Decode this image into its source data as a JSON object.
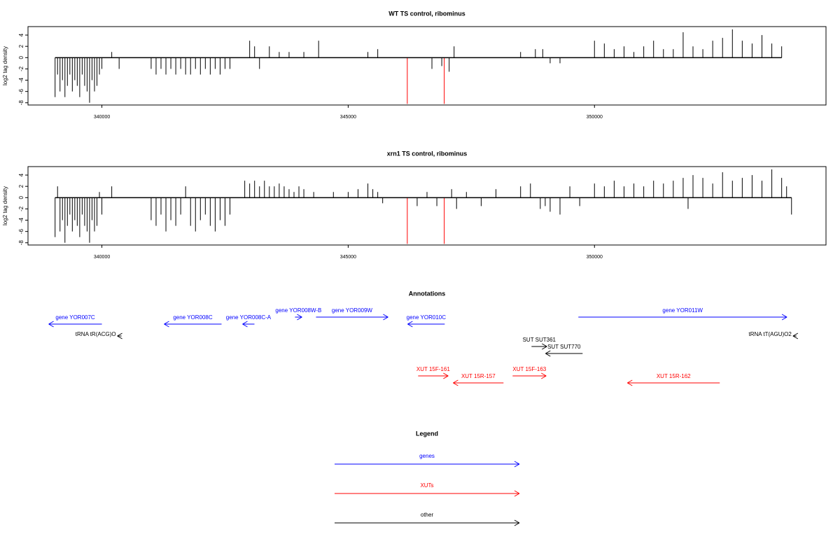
{
  "chart_data": [
    {
      "type": "bar",
      "title": "WT TS control, ribominus",
      "ylabel": "log2 tag density",
      "xlim": [
        338500,
        354700
      ],
      "ylim": [
        -8.4,
        5.5
      ],
      "xticks": [
        340000,
        345000,
        350000
      ],
      "yticks": [
        -8,
        -6,
        -4,
        -2,
        0,
        2,
        4
      ],
      "color": "#000000",
      "x": [
        339050,
        339100,
        339150,
        339200,
        339250,
        339300,
        339350,
        339400,
        339450,
        339500,
        339550,
        339600,
        339650,
        339700,
        339750,
        339800,
        339850,
        339900,
        339950,
        340000,
        340200,
        340350,
        341000,
        341100,
        341200,
        341300,
        341400,
        341500,
        341600,
        341700,
        341800,
        341900,
        342000,
        342100,
        342200,
        342300,
        342400,
        342500,
        342600,
        343000,
        343100,
        343200,
        343400,
        343600,
        343800,
        344100,
        344400,
        345400,
        345600,
        346700,
        346900,
        347050,
        347150,
        348500,
        348800,
        348950,
        349100,
        349300,
        350000,
        350200,
        350400,
        350600,
        350800,
        351000,
        351200,
        351400,
        351600,
        351800,
        352000,
        352200,
        352400,
        352600,
        352800,
        353000,
        353200,
        353400,
        353600,
        353800
      ],
      "values": [
        -7,
        -3,
        -6,
        -4,
        -7,
        -5,
        -3,
        -6,
        -4,
        -5,
        -7,
        -3,
        -5,
        -6,
        -8,
        -4,
        -6,
        -5,
        -3,
        -2,
        1,
        -2,
        -2,
        -3,
        -2,
        -3,
        -2,
        -3,
        -2,
        -3,
        -3,
        -2,
        -3,
        -2,
        -3,
        -2,
        -3,
        -2,
        -2,
        3,
        2,
        -2,
        2,
        1,
        1,
        1,
        3,
        1,
        1.5,
        -2,
        -1.5,
        -2.5,
        2,
        1,
        1.5,
        1.5,
        -1,
        -1,
        3,
        2.5,
        1.5,
        2,
        1,
        2,
        3,
        1.5,
        1.5,
        4.5,
        2,
        1.5,
        3,
        3.5,
        5,
        3,
        2.5,
        4,
        2.5,
        2
      ],
      "highlight": {
        "color": "#ff0000",
        "x": [
          346200,
          346950
        ],
        "values": [
          -8.2,
          -8.2
        ]
      }
    },
    {
      "type": "bar",
      "title": "xrn1 TS control, ribominus",
      "ylabel": "log2 tag density",
      "xlim": [
        338500,
        354700
      ],
      "ylim": [
        -8.4,
        5.5
      ],
      "xticks": [
        340000,
        345000,
        350000
      ],
      "yticks": [
        -8,
        -6,
        -4,
        -2,
        0,
        2,
        4
      ],
      "color": "#000000",
      "x": [
        339050,
        339100,
        339150,
        339200,
        339250,
        339300,
        339350,
        339400,
        339450,
        339500,
        339550,
        339600,
        339650,
        339700,
        339750,
        339800,
        339850,
        339900,
        339950,
        340000,
        340200,
        341000,
        341100,
        341200,
        341300,
        341400,
        341500,
        341600,
        341700,
        341800,
        341900,
        342000,
        342100,
        342200,
        342300,
        342400,
        342500,
        342600,
        342900,
        343000,
        343100,
        343200,
        343300,
        343400,
        343500,
        343600,
        343700,
        343800,
        343900,
        344000,
        344100,
        344300,
        344700,
        345000,
        345200,
        345400,
        345500,
        345600,
        345700,
        346400,
        346600,
        346800,
        347100,
        347200,
        347400,
        347700,
        348000,
        348500,
        348700,
        348900,
        349000,
        349100,
        349300,
        349500,
        349700,
        350000,
        350200,
        350400,
        350600,
        350800,
        351000,
        351200,
        351400,
        351600,
        351800,
        351900,
        352000,
        352200,
        352400,
        352600,
        352800,
        353000,
        353200,
        353400,
        353600,
        353800,
        353900,
        354000
      ],
      "values": [
        -7,
        2,
        -6,
        -4,
        -8,
        -5,
        -3,
        -6,
        -4,
        -5,
        -7,
        -3,
        -5,
        -6,
        -8,
        -4,
        -6,
        -5,
        1,
        -3,
        2,
        -4,
        -5,
        -3,
        -6,
        -4,
        -5,
        -3,
        2,
        -5,
        -6,
        -4,
        -3,
        -5,
        -6,
        -4,
        -5,
        -3,
        3,
        2.5,
        3,
        2,
        3,
        2,
        2,
        2.5,
        2,
        1.5,
        1,
        2,
        1.5,
        1,
        1,
        1,
        1.5,
        2.5,
        1.5,
        1,
        -1,
        -1.5,
        1,
        -1.5,
        1.5,
        -2,
        1,
        -1.5,
        1.5,
        2,
        2.5,
        -2,
        -1.5,
        -2.5,
        -3,
        2,
        -1.5,
        2.5,
        2,
        3,
        2,
        2.5,
        2,
        3,
        2.5,
        3,
        3.5,
        -2,
        4,
        3.5,
        2.5,
        4.5,
        3,
        3.5,
        4,
        3,
        5,
        3.5,
        2,
        -3
      ],
      "highlight": {
        "color": "#ff0000",
        "x": [
          346200,
          346950
        ],
        "values": [
          -8.2,
          -8.2
        ]
      }
    }
  ],
  "annotations": {
    "title": "Annotations",
    "features": [
      {
        "label": "gene YOR007C",
        "start": 338920,
        "end": 340000,
        "strand": "-",
        "color": "#0000ff"
      },
      {
        "label": "gene YOR008C",
        "start": 341264,
        "end": 342429,
        "strand": "-",
        "color": "#0000ff"
      },
      {
        "label": "gene YOR008C-A",
        "start": 342855,
        "end": 343097,
        "strand": "-",
        "color": "#0000ff"
      },
      {
        "label": "gene YOR008W-B",
        "start": 343920,
        "end": 344062,
        "strand": "+",
        "color": "#0000ff"
      },
      {
        "label": "gene YOR009W",
        "start": 344347,
        "end": 345810,
        "strand": "+",
        "color": "#0000ff"
      },
      {
        "label": "gene YOR010C",
        "start": 346207,
        "end": 346960,
        "strand": "-",
        "color": "#0000ff"
      },
      {
        "label": "gene YOR011W",
        "start": 349673,
        "end": 353906,
        "strand": "+",
        "color": "#0000ff"
      },
      {
        "label": "tRNA tR(ACG)O",
        "start": 340313,
        "end": 340398,
        "strand": "-",
        "color": "#000000"
      },
      {
        "label": "tRNA tT(AGU)O2",
        "start": 354030,
        "end": 354100,
        "strand": "-",
        "color": "#000000"
      },
      {
        "label": "SUT SUT361",
        "start": 348722,
        "end": 349034,
        "strand": "+",
        "color": "#000000"
      },
      {
        "label": "SUT SUT770",
        "start": 349006,
        "end": 349759,
        "strand": "-",
        "color": "#000000"
      },
      {
        "label": "XUT 15F-161",
        "start": 346420,
        "end": 347031,
        "strand": "+",
        "color": "#ff0000"
      },
      {
        "label": "XUT 15R-157",
        "start": 347131,
        "end": 348153,
        "strand": "-",
        "color": "#ff0000"
      },
      {
        "label": "XUT 15F-163",
        "start": 348338,
        "end": 349020,
        "strand": "+",
        "color": "#ff0000"
      },
      {
        "label": "XUT 15R-162",
        "start": 350668,
        "end": 352543,
        "strand": "-",
        "color": "#ff0000"
      }
    ]
  },
  "legend": {
    "title": "Legend",
    "items": [
      {
        "label": "genes",
        "color": "#0000ff"
      },
      {
        "label": "XUTs",
        "color": "#ff0000"
      },
      {
        "label": "other",
        "color": "#000000"
      }
    ]
  }
}
